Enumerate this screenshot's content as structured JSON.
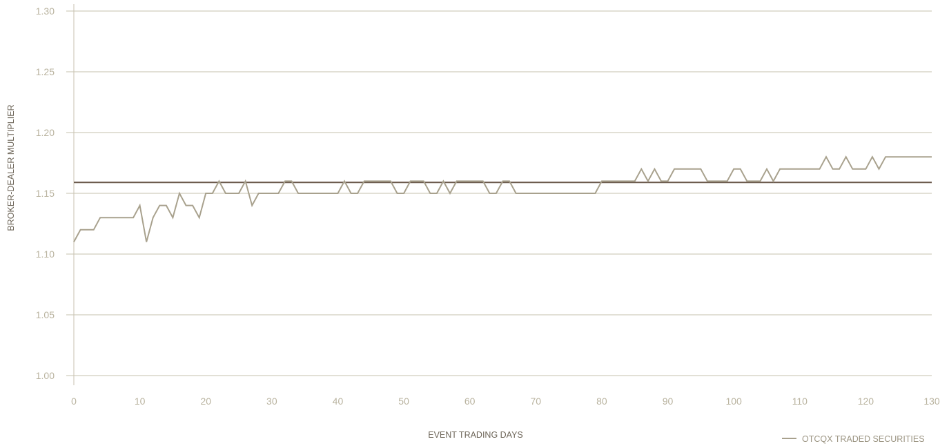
{
  "chart_data": {
    "type": "line",
    "xlabel": "EVENT TRADING DAYS",
    "ylabel": "BROKER-DEALER MULTIPLIER",
    "xlim": [
      0,
      130
    ],
    "ylim": [
      1.0,
      1.3
    ],
    "x_ticks": [
      0,
      10,
      20,
      30,
      40,
      50,
      60,
      70,
      80,
      90,
      100,
      110,
      120,
      130
    ],
    "x_tick_labels": [
      "0",
      "10",
      "20",
      "30",
      "40",
      "50",
      "60",
      "70",
      "80",
      "90",
      "100",
      "110",
      "120",
      "130"
    ],
    "y_ticks": [
      1.0,
      1.05,
      1.1,
      1.15,
      1.2,
      1.25,
      1.3
    ],
    "y_tick_labels": [
      "1.00",
      "1.05",
      "1.10",
      "1.15",
      "1.20",
      "1.25",
      "1.30"
    ],
    "grid": "horizontal",
    "legend_position": "bottom-right",
    "series": [
      {
        "name": "OTCQX TRADED SECURITIES",
        "color": "#a8a18d",
        "points": [
          [
            0,
            1.11
          ],
          [
            1,
            1.12
          ],
          [
            3,
            1.12
          ],
          [
            4,
            1.13
          ],
          [
            9,
            1.13
          ],
          [
            10,
            1.14
          ],
          [
            11,
            1.11
          ],
          [
            12,
            1.13
          ],
          [
            13,
            1.14
          ],
          [
            14,
            1.14
          ],
          [
            15,
            1.13
          ],
          [
            16,
            1.15
          ],
          [
            17,
            1.14
          ],
          [
            18,
            1.14
          ],
          [
            19,
            1.13
          ],
          [
            20,
            1.15
          ],
          [
            21,
            1.15
          ],
          [
            22,
            1.16
          ],
          [
            23,
            1.15
          ],
          [
            25,
            1.15
          ],
          [
            26,
            1.16
          ],
          [
            27,
            1.14
          ],
          [
            28,
            1.15
          ],
          [
            31,
            1.15
          ],
          [
            32,
            1.16
          ],
          [
            33,
            1.16
          ],
          [
            34,
            1.15
          ],
          [
            40,
            1.15
          ],
          [
            41,
            1.16
          ],
          [
            42,
            1.15
          ],
          [
            43,
            1.15
          ],
          [
            44,
            1.16
          ],
          [
            48,
            1.16
          ],
          [
            49,
            1.15
          ],
          [
            50,
            1.15
          ],
          [
            51,
            1.16
          ],
          [
            53,
            1.16
          ],
          [
            54,
            1.15
          ],
          [
            55,
            1.15
          ],
          [
            56,
            1.16
          ],
          [
            57,
            1.15
          ],
          [
            58,
            1.16
          ],
          [
            62,
            1.16
          ],
          [
            63,
            1.15
          ],
          [
            64,
            1.15
          ],
          [
            65,
            1.16
          ],
          [
            66,
            1.16
          ],
          [
            67,
            1.15
          ],
          [
            79,
            1.15
          ],
          [
            80,
            1.16
          ],
          [
            85,
            1.16
          ],
          [
            86,
            1.17
          ],
          [
            87,
            1.16
          ],
          [
            88,
            1.17
          ],
          [
            89,
            1.16
          ],
          [
            90,
            1.16
          ],
          [
            91,
            1.17
          ],
          [
            95,
            1.17
          ],
          [
            96,
            1.16
          ],
          [
            99,
            1.16
          ],
          [
            100,
            1.17
          ],
          [
            101,
            1.17
          ],
          [
            102,
            1.16
          ],
          [
            104,
            1.16
          ],
          [
            105,
            1.17
          ],
          [
            106,
            1.16
          ],
          [
            107,
            1.17
          ],
          [
            113,
            1.17
          ],
          [
            114,
            1.18
          ],
          [
            115,
            1.17
          ],
          [
            116,
            1.17
          ],
          [
            117,
            1.18
          ],
          [
            118,
            1.17
          ],
          [
            120,
            1.17
          ],
          [
            121,
            1.18
          ],
          [
            122,
            1.17
          ],
          [
            123,
            1.18
          ],
          [
            130,
            1.18
          ]
        ]
      },
      {
        "name": "",
        "color": "#6b5a4c",
        "points": [
          [
            0,
            1.159
          ],
          [
            130,
            1.159
          ]
        ]
      }
    ]
  }
}
